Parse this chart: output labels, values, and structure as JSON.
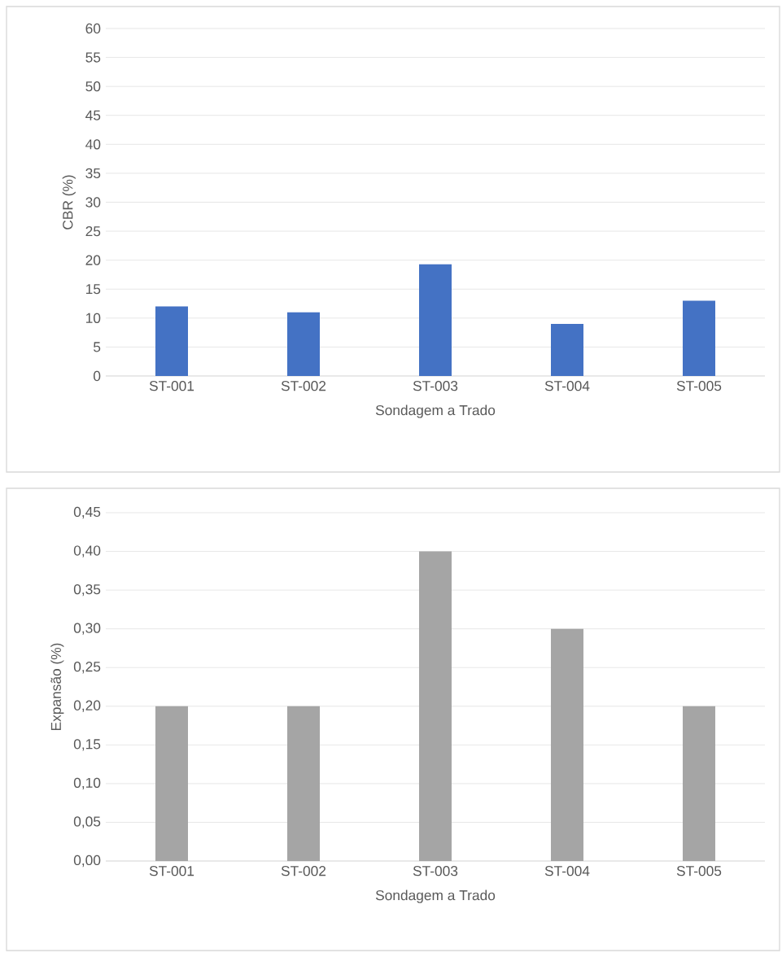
{
  "chart_data": [
    {
      "type": "bar",
      "xlabel": "Sondagem a Trado",
      "ylabel": "CBR (%)",
      "categories": [
        "ST-001",
        "ST-002",
        "ST-003",
        "ST-004",
        "ST-005"
      ],
      "values": [
        12,
        11,
        19.3,
        9,
        13
      ],
      "color": "#4472c4",
      "ylim": [
        0,
        60
      ],
      "yticks": [
        0,
        5,
        10,
        15,
        20,
        25,
        30,
        35,
        40,
        45,
        50,
        55,
        60
      ],
      "grid": "y"
    },
    {
      "type": "bar",
      "xlabel": "Sondagem a Trado",
      "ylabel": "Expansão (%)",
      "categories": [
        "ST-001",
        "ST-002",
        "ST-003",
        "ST-004",
        "ST-005"
      ],
      "values": [
        0.2,
        0.2,
        0.4,
        0.3,
        0.2
      ],
      "color": "#a5a5a5",
      "ylim": [
        0,
        0.45
      ],
      "yticks": [
        {
          "value": 0,
          "label": "0,00"
        },
        {
          "value": 0.05,
          "label": "0,05"
        },
        {
          "value": 0.1,
          "label": "0,10"
        },
        {
          "value": 0.15,
          "label": "0,15"
        },
        {
          "value": 0.2,
          "label": "0,20"
        },
        {
          "value": 0.25,
          "label": "0,25"
        },
        {
          "value": 0.3,
          "label": "0,30"
        },
        {
          "value": 0.35,
          "label": "0,35"
        },
        {
          "value": 0.4,
          "label": "0,40"
        },
        {
          "value": 0.45,
          "label": "0,45"
        }
      ],
      "grid": "y"
    }
  ]
}
